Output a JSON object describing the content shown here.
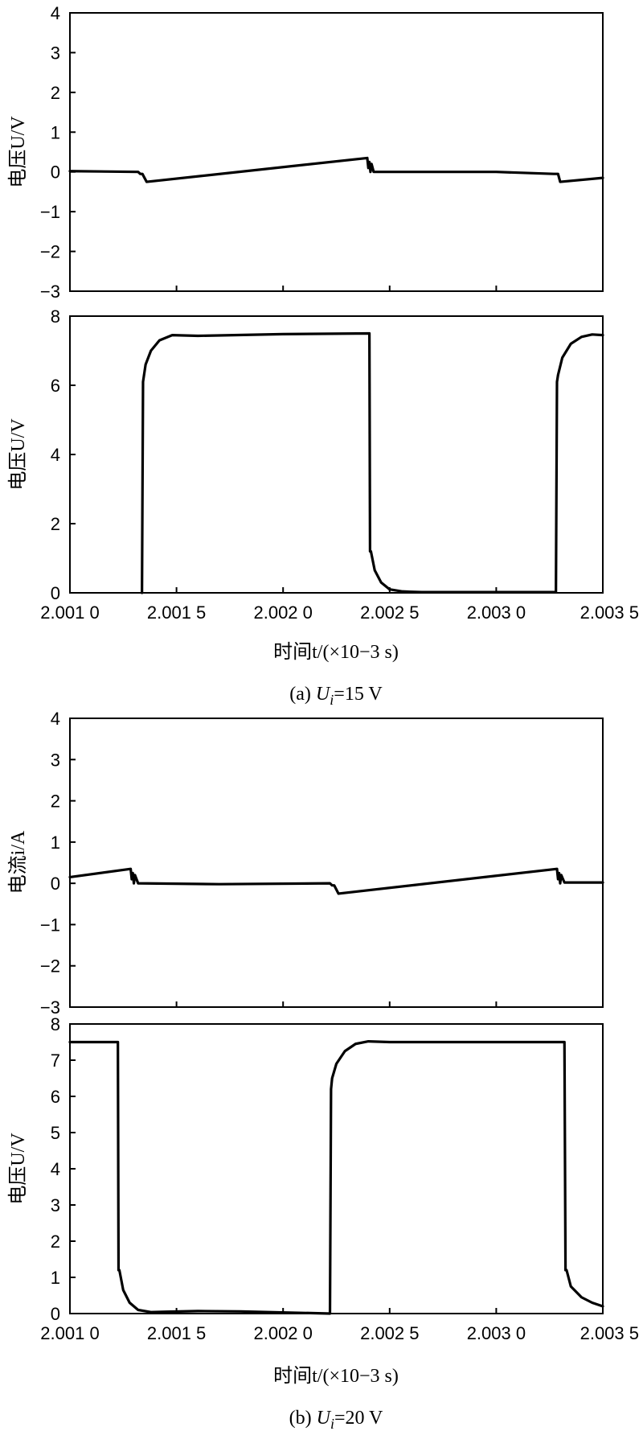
{
  "chart_data": [
    {
      "id": "a-top",
      "type": "line",
      "ylabel": "电压U/V",
      "xlim": [
        2.001,
        2.0035
      ],
      "ylim": [
        -3,
        4
      ],
      "yticks": [
        4,
        3,
        2,
        1,
        0,
        -1,
        -2,
        -3
      ],
      "ytick_labels": [
        "4",
        "3",
        "2",
        "1",
        "0",
        "−1",
        "−2",
        "−3"
      ],
      "series": [
        {
          "x": [
            2.001,
            2.00132,
            2.00133,
            2.00134,
            2.00136,
            2.002395,
            2.0024,
            2.002405,
            2.00241,
            2.002415,
            2.002425,
            2.003,
            2.00327,
            2.00329,
            2.0033,
            2.0035
          ],
          "y": [
            0.02,
            0.0,
            -0.05,
            -0.05,
            -0.25,
            0.35,
            0.1,
            0.25,
            0.0,
            0.2,
            0.0,
            0.0,
            -0.05,
            -0.05,
            -0.25,
            -0.15
          ]
        }
      ]
    },
    {
      "id": "a-bottom",
      "type": "line",
      "ylabel": "电压U/V",
      "xlabel": "时间t/(×10−3 s)",
      "xlim": [
        2.001,
        2.0035
      ],
      "ylim": [
        0,
        8
      ],
      "yticks": [
        8,
        6,
        4,
        2,
        0
      ],
      "ytick_labels": [
        "8",
        "6",
        "4",
        "2",
        "0"
      ],
      "xtick_labels": [
        "2.001 0",
        "2.001 5",
        "2.002 0",
        "2.002 5",
        "2.003 0",
        "2.003 5"
      ],
      "series": [
        {
          "x": [
            2.001338,
            2.001343,
            2.001355,
            2.00138,
            2.00142,
            2.00148,
            2.0016,
            2.002,
            2.002405,
            2.002408,
            2.002412,
            2.00243,
            2.00246,
            2.0025,
            2.00256,
            2.00265,
            2.00328,
            2.003285,
            2.00329,
            2.00331,
            2.00335,
            2.0034,
            2.00345,
            2.0035
          ],
          "y": [
            0,
            6.1,
            6.6,
            7.0,
            7.3,
            7.45,
            7.43,
            7.48,
            7.5,
            1.2,
            1.2,
            0.65,
            0.3,
            0.1,
            0.04,
            0.02,
            0.02,
            6.1,
            6.3,
            6.8,
            7.2,
            7.4,
            7.47,
            7.45
          ]
        }
      ]
    },
    {
      "id": "b-top",
      "type": "line",
      "ylabel": "电流i/A",
      "xlim": [
        2.001,
        2.0035
      ],
      "ylim": [
        -3,
        4
      ],
      "yticks": [
        4,
        3,
        2,
        1,
        0,
        -1,
        -2,
        -3
      ],
      "ytick_labels": [
        "4",
        "3",
        "2",
        "1",
        "0",
        "−1",
        "−2",
        "−3"
      ],
      "series": [
        {
          "x": [
            2.001,
            2.001285,
            2.00129,
            2.001295,
            2.0013,
            2.001305,
            2.00132,
            2.0017,
            2.00222,
            2.00223,
            2.00224,
            2.00226,
            2.003285,
            2.00329,
            2.003295,
            2.0033,
            2.003305,
            2.00332,
            2.0035
          ],
          "y": [
            0.15,
            0.35,
            0.1,
            0.25,
            0.0,
            0.2,
            0.0,
            -0.02,
            0.0,
            -0.05,
            -0.05,
            -0.25,
            0.35,
            0.1,
            0.25,
            0.0,
            0.2,
            0.02,
            0.02
          ]
        }
      ]
    },
    {
      "id": "b-bottom",
      "type": "line",
      "ylabel": "电压U/V",
      "xlabel": "时间t/(×10−3 s)",
      "xlim": [
        2.001,
        2.0035
      ],
      "ylim": [
        0,
        8
      ],
      "yticks": [
        8,
        7,
        6,
        5,
        4,
        3,
        2,
        1,
        0
      ],
      "ytick_labels": [
        "8",
        "7",
        "6",
        "5",
        "4",
        "3",
        "2",
        "1",
        "0"
      ],
      "xtick_labels": [
        "2.001 0",
        "2.001 5",
        "2.002 0",
        "2.002 5",
        "2.003 0",
        "2.003 5"
      ],
      "series": [
        {
          "x": [
            2.001,
            2.001225,
            2.001228,
            2.001232,
            2.00125,
            2.00128,
            2.00132,
            2.00138,
            2.00145,
            2.0016,
            2.0018,
            2.00222,
            2.002225,
            2.00223,
            2.00225,
            2.00229,
            2.00234,
            2.0024,
            2.0025,
            2.003,
            2.00332,
            2.003325,
            2.00333,
            2.00335,
            2.0034,
            2.00345,
            2.0035
          ],
          "y": [
            7.5,
            7.5,
            1.2,
            1.2,
            0.65,
            0.3,
            0.1,
            0.04,
            0.05,
            0.07,
            0.06,
            0.0,
            6.2,
            6.5,
            6.9,
            7.25,
            7.45,
            7.52,
            7.5,
            7.5,
            7.5,
            1.2,
            1.2,
            0.75,
            0.45,
            0.3,
            0.2
          ]
        }
      ]
    }
  ],
  "captions": {
    "a": {
      "prefix": "(a) ",
      "var": "U",
      "sub": "i",
      "rest": "=15 V"
    },
    "b": {
      "prefix": "(b) ",
      "var": "U",
      "sub": "i",
      "rest": "=20 V"
    }
  }
}
